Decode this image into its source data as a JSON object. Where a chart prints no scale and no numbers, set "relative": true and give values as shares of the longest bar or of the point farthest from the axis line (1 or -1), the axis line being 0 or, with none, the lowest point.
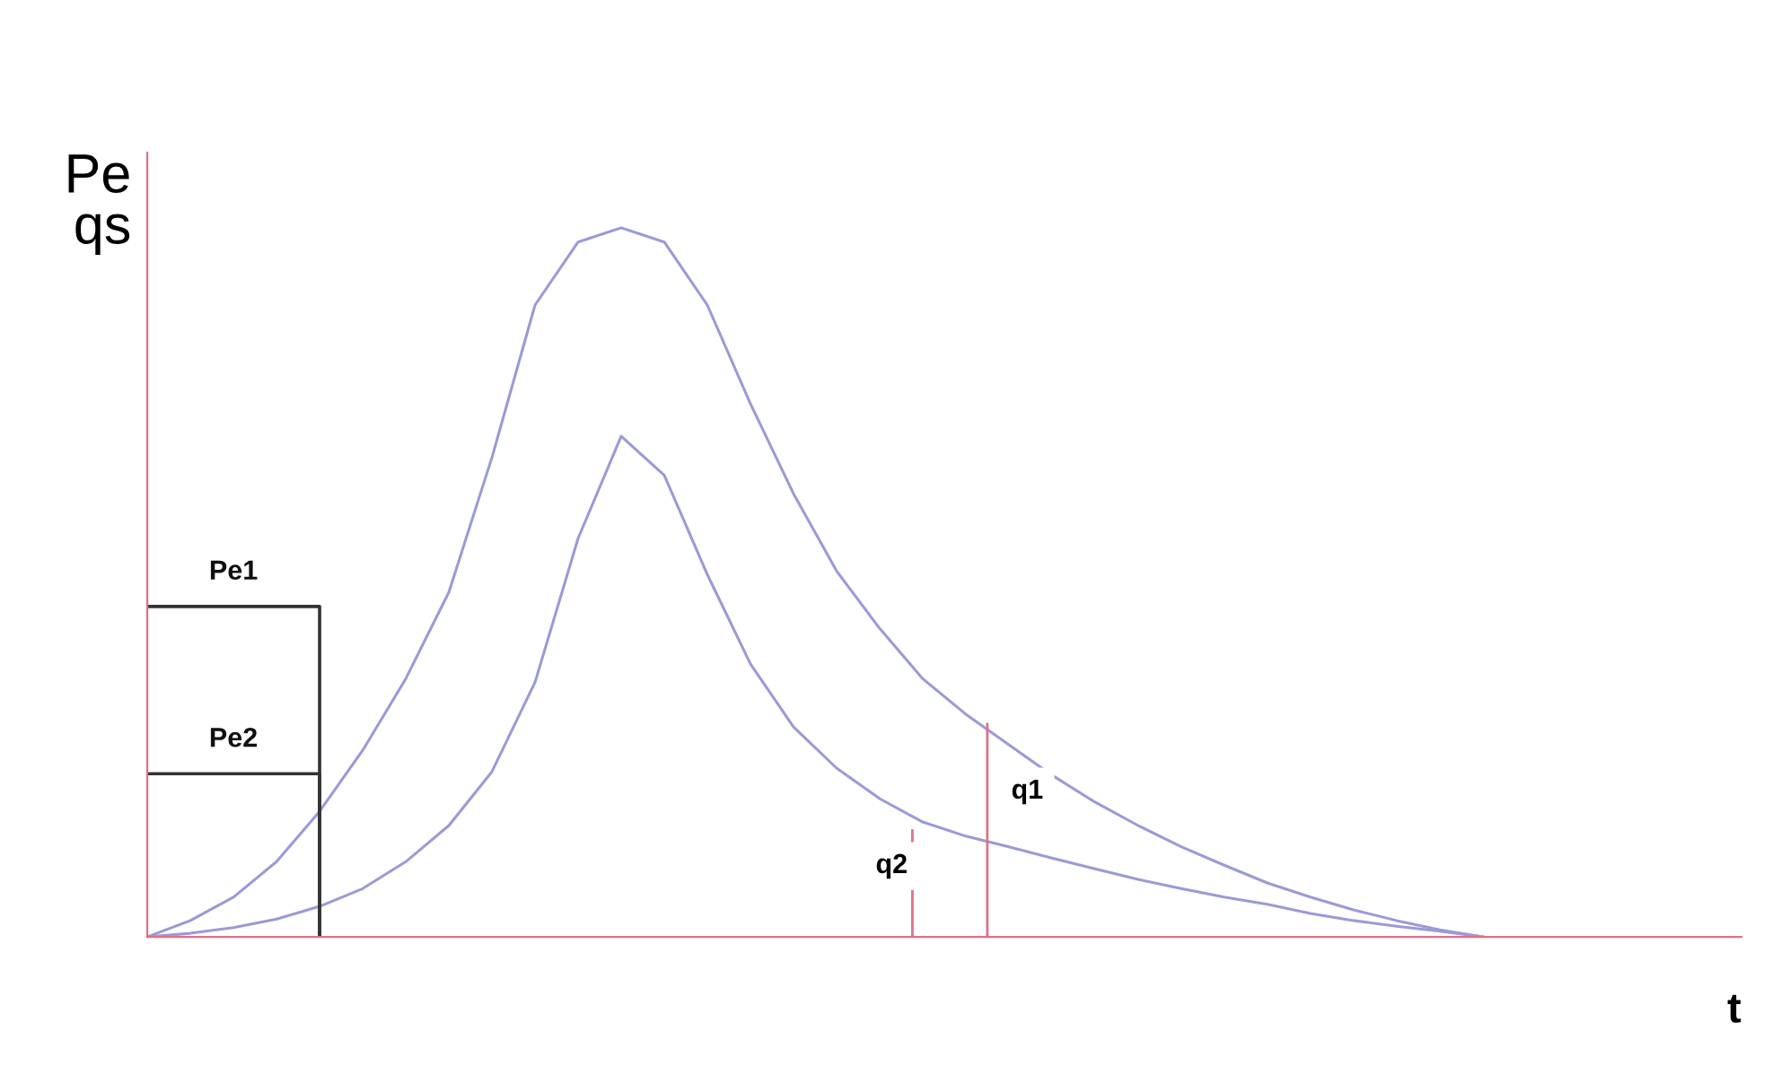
{
  "chart_data": {
    "type": "line",
    "relative": true,
    "xlabel": "t",
    "ylabel": "Pe\nqs",
    "categories": [
      null,
      null,
      null,
      null,
      null,
      null,
      null,
      null,
      null,
      null,
      null,
      null,
      null,
      null,
      null,
      null,
      null,
      null,
      null,
      null,
      null,
      null,
      null,
      null,
      null,
      null,
      null,
      null,
      null,
      null,
      null,
      null,
      null,
      null,
      null,
      null,
      null,
      null
    ],
    "series": [
      {
        "color": "#9a9ad8",
        "values": [
          0,
          0.023,
          0.056,
          0.106,
          0.177,
          0.263,
          0.364,
          0.486,
          0.676,
          0.891,
          0.98,
          1,
          0.98,
          0.891,
          0.752,
          0.625,
          0.516,
          0.435,
          0.364,
          0.314,
          0.271,
          0.228,
          0.19,
          0.157,
          0.127,
          0.101,
          0.076,
          0.056,
          0.038,
          0.023,
          0.01,
          0,
          null,
          null,
          null,
          null,
          null,
          null
        ]
      },
      {
        "color": "#9a9ad8",
        "values": [
          0,
          0.005,
          0.013,
          0.025,
          0.043,
          0.068,
          0.106,
          0.157,
          0.233,
          0.359,
          0.562,
          0.706,
          0.651,
          0.511,
          0.385,
          0.296,
          0.238,
          0.195,
          0.162,
          0.142,
          0.127,
          0.111,
          0.096,
          0.081,
          0.068,
          0.056,
          0.046,
          0.033,
          0.023,
          0.015,
          0.008,
          0,
          null,
          null,
          null,
          null,
          null,
          null
        ]
      },
      {
        "type": "step",
        "name": "Pe1",
        "color": "#333333",
        "values": [
          0.466,
          0.466,
          0.466,
          0.466,
          0,
          null,
          null,
          null,
          null,
          null,
          null,
          null,
          null,
          null,
          null,
          null,
          null,
          null,
          null,
          null,
          null,
          null,
          null,
          null,
          null,
          null,
          null,
          null,
          null,
          null,
          null,
          null,
          null,
          null,
          null,
          null,
          null,
          null
        ]
      },
      {
        "type": "step",
        "name": "Pe2",
        "color": "#333333",
        "values": [
          0.23,
          0.23,
          0.23,
          0.23,
          0,
          null,
          null,
          null,
          null,
          null,
          null,
          null,
          null,
          null,
          null,
          null,
          null,
          null,
          null,
          null,
          null,
          null,
          null,
          null,
          null,
          null,
          null,
          null,
          null,
          null,
          null,
          null,
          null,
          null,
          null,
          null,
          null,
          null
        ]
      }
    ],
    "annotations": [
      "q1",
      "q2"
    ],
    "legend": false
  }
}
